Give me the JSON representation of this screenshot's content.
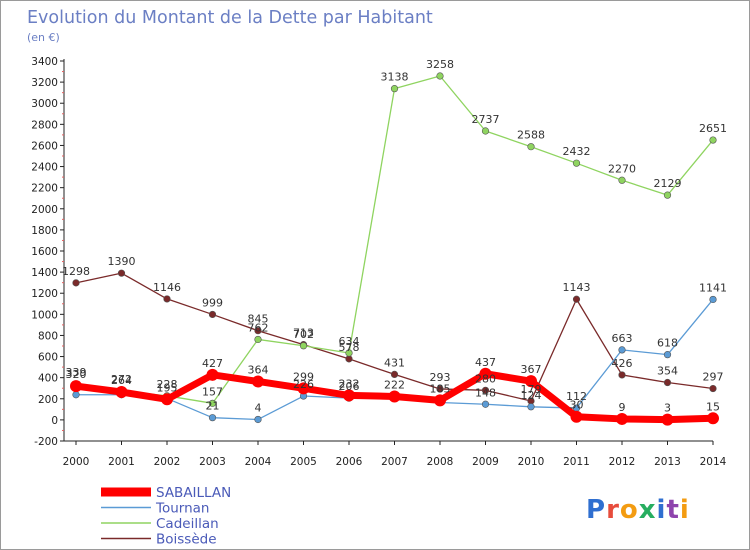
{
  "chart_data": {
    "type": "line",
    "title": "Evolution du Montant de la Dette par Habitant",
    "subtitle": "(en €)",
    "xlabel": "",
    "ylabel": "",
    "ylim": [
      -200,
      3400
    ],
    "ytick_step": 200,
    "grid": false,
    "legend_position": "bottom-left",
    "x": [
      "2000",
      "2001",
      "2002",
      "2003",
      "2004",
      "2005",
      "2006",
      "2007",
      "2008",
      "2009",
      "2010",
      "2011",
      "2012",
      "2013",
      "2014"
    ],
    "series": [
      {
        "name": "SABAILLAN",
        "color": "#ff0000",
        "values": [
          320,
          264,
          195,
          427,
          364,
          299,
          232,
          222,
          185,
          437,
          367,
          30,
          9,
          3,
          15
        ],
        "labels": [
          "320",
          "264",
          "195",
          "427",
          "364",
          "299",
          "232",
          "222",
          "185",
          "437",
          "367",
          "30",
          "9",
          "3",
          "15"
        ]
      },
      {
        "name": "Tournan",
        "color": "#5b9bd5",
        "values": [
          238,
          238,
          203,
          21,
          4,
          226,
          206,
          205,
          165,
          148,
          124,
          112,
          663,
          618,
          1141
        ],
        "labels": [
          "",
          "",
          "",
          "21",
          "4",
          "226",
          "206",
          "",
          "",
          "148",
          "124",
          "112",
          "663",
          "618",
          "1141"
        ]
      },
      {
        "name": "Cadeillan",
        "color": "#8fd460",
        "values": [
          339,
          272,
          228,
          157,
          762,
          702,
          634,
          3138,
          3258,
          2737,
          2588,
          2432,
          2270,
          2129,
          2651
        ],
        "labels": [
          "339",
          "272",
          "228",
          "157",
          "762",
          "702",
          "634",
          "3138",
          "3258",
          "2737",
          "2588",
          "2432",
          "2270",
          "2129",
          "2651"
        ]
      },
      {
        "name": "Boissède",
        "color": "#7a2a2a",
        "values": [
          1298,
          1390,
          1146,
          999,
          845,
          713,
          578,
          431,
          293,
          280,
          179,
          1143,
          426,
          354,
          297
        ],
        "labels": [
          "1298",
          "1390",
          "1146",
          "999",
          "845",
          "713",
          "578",
          "431",
          "293",
          "280",
          "179",
          "1143",
          "426",
          "354",
          "297"
        ]
      }
    ]
  },
  "logo": {
    "text": "Proxiti"
  }
}
